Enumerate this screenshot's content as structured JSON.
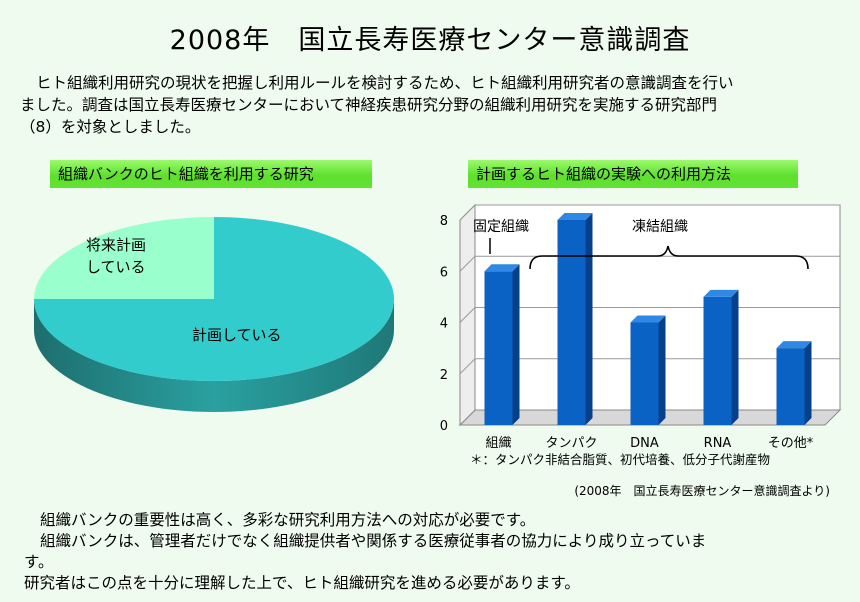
{
  "header": {
    "title": "2008年　国立長寿医療センター意識調査"
  },
  "intro": {
    "line1": "ヒト組織利用研究の現状を把握し利用ルールを検討するため、ヒト組織利用研究者の意識調査を行い",
    "line2": "ました。調査は国立長寿医療センターにおいて神経疾患研究分野の組織利用研究を実施する研究部門",
    "line3": "（8）を対象としました。"
  },
  "chart_data": [
    {
      "type": "pie",
      "title": "組織バンクのヒト組織を利用する研究",
      "slices": [
        {
          "label": "計画している",
          "value": 75,
          "color": "#33cccc"
        },
        {
          "label": "将来計画している",
          "value": 25,
          "color": "#99ffcc"
        }
      ],
      "label_lines": {
        "future_1": "将来計画",
        "future_2": "している"
      }
    },
    {
      "type": "bar",
      "title": "計画するヒト組織の実験への利用方法",
      "categories": [
        "組織",
        "タンパク",
        "DNA",
        "RNA",
        "その他*"
      ],
      "values": [
        6,
        8,
        4,
        5,
        3
      ],
      "ylim": [
        0,
        8
      ],
      "yticks": [
        "0",
        "2",
        "4",
        "6",
        "8"
      ],
      "grid": true,
      "bar_color": "#0a63c4",
      "annotations": {
        "fixed": "固定組織",
        "frozen": "凍結組織"
      },
      "footnote": "＊：タンパク非結合脂質、初代培養、低分子代謝産物"
    }
  ],
  "source": "(2008年　国立長寿医療センター意識調査より)",
  "outro": {
    "line1": "組織バンクの重要性は高く、多彩な研究利用方法への対応が必要です。",
    "line2": "組織バンクは、管理者だけでなく組織提供者や関係する医療従事者の協力により成り立っていま",
    "line3": "す。",
    "line4": "研究者はこの点を十分に理解した上で、ヒト組織研究を進める必要があります。"
  }
}
